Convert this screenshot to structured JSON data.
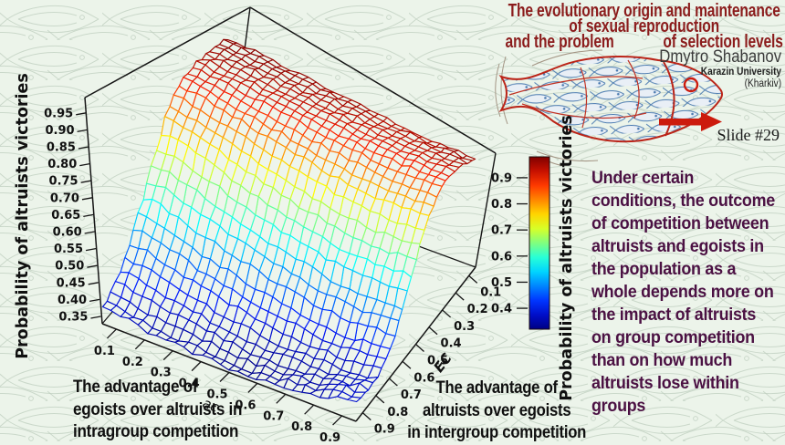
{
  "slide": {
    "title_line1": "The evolutionary origin and maintenance",
    "title_line2": "of sexual reproduction",
    "title_line3_left": "and the problem",
    "title_line3_right": "of selection levels",
    "author": "Dmytro Shabanov",
    "affiliation": "Karazin University",
    "affiliation_city": "(Kharkiv)",
    "slide_number": "Slide #29",
    "body_text_lines": [
      "Under certain",
      "conditions, the outcome",
      "of competition between",
      "altruists and egoists in",
      "the population as a",
      "whole depends more on",
      "the impact of altruists",
      "on group competition",
      "than on how much",
      "altruists lose within",
      "groups"
    ]
  },
  "colors": {
    "background": "#ecf4ea",
    "pattern_stroke": "#bfcfbf",
    "title_red": "#8b1c1c",
    "body_purple": "#4b1143",
    "axis_black": "#101010",
    "fish_outline_red": "#bb2418",
    "small_fish_blue": "#4a7ab0",
    "arrow_red": "#cc1b0e"
  },
  "chart_data": {
    "type": "surface",
    "zlabel": "Probability of altruists victories",
    "xlabel": "ac",
    "ylabel": "EC",
    "x_caption_lines": [
      "The advantage of",
      "egoists over altruists in",
      "intragroup competition"
    ],
    "y_caption_lines": [
      "The advantage of",
      "altruists over egoists",
      "in intergroup competition"
    ],
    "x_ticks": [
      0.1,
      0.2,
      0.3,
      0.4,
      0.5,
      0.6,
      0.7,
      0.8,
      0.9
    ],
    "y_ticks": [
      0.1,
      0.2,
      0.3,
      0.4,
      0.5,
      0.6,
      0.7,
      0.8,
      0.9
    ],
    "z_ticks": [
      0.35,
      0.4,
      0.45,
      0.5,
      0.55,
      0.6,
      0.65,
      0.7,
      0.75,
      0.8,
      0.85,
      0.9,
      0.95
    ],
    "zlim": [
      0.33,
      0.97
    ],
    "grid": true,
    "colorbar": {
      "label": "Probability of altruists victories",
      "ticks": [
        0.9,
        0.8,
        0.7,
        0.6,
        0.5,
        0.4
      ],
      "range": [
        0.32,
        0.98
      ],
      "colormap": "jet (dark blue -> cyan -> yellow -> dark red)"
    },
    "surface": {
      "ac": [
        0.1,
        0.2,
        0.3,
        0.4,
        0.5,
        0.6,
        0.7,
        0.8,
        0.9
      ],
      "EC": [
        0.1,
        0.2,
        0.3,
        0.4,
        0.5,
        0.6,
        0.7,
        0.8,
        0.9
      ],
      "z_prob": [
        [
          0.96,
          0.96,
          0.95,
          0.95,
          0.95,
          0.94,
          0.94,
          0.94,
          0.95
        ],
        [
          0.95,
          0.95,
          0.94,
          0.93,
          0.93,
          0.92,
          0.92,
          0.92,
          0.93
        ],
        [
          0.93,
          0.92,
          0.91,
          0.9,
          0.89,
          0.88,
          0.87,
          0.87,
          0.88
        ],
        [
          0.89,
          0.87,
          0.85,
          0.83,
          0.81,
          0.79,
          0.78,
          0.77,
          0.78
        ],
        [
          0.8,
          0.77,
          0.74,
          0.71,
          0.68,
          0.66,
          0.64,
          0.63,
          0.64
        ],
        [
          0.67,
          0.64,
          0.61,
          0.58,
          0.55,
          0.53,
          0.51,
          0.5,
          0.51
        ],
        [
          0.54,
          0.51,
          0.48,
          0.46,
          0.44,
          0.42,
          0.41,
          0.4,
          0.41
        ],
        [
          0.44,
          0.42,
          0.4,
          0.38,
          0.37,
          0.36,
          0.36,
          0.36,
          0.37
        ],
        [
          0.38,
          0.36,
          0.35,
          0.35,
          0.34,
          0.34,
          0.35,
          0.36,
          0.38
        ]
      ]
    }
  }
}
